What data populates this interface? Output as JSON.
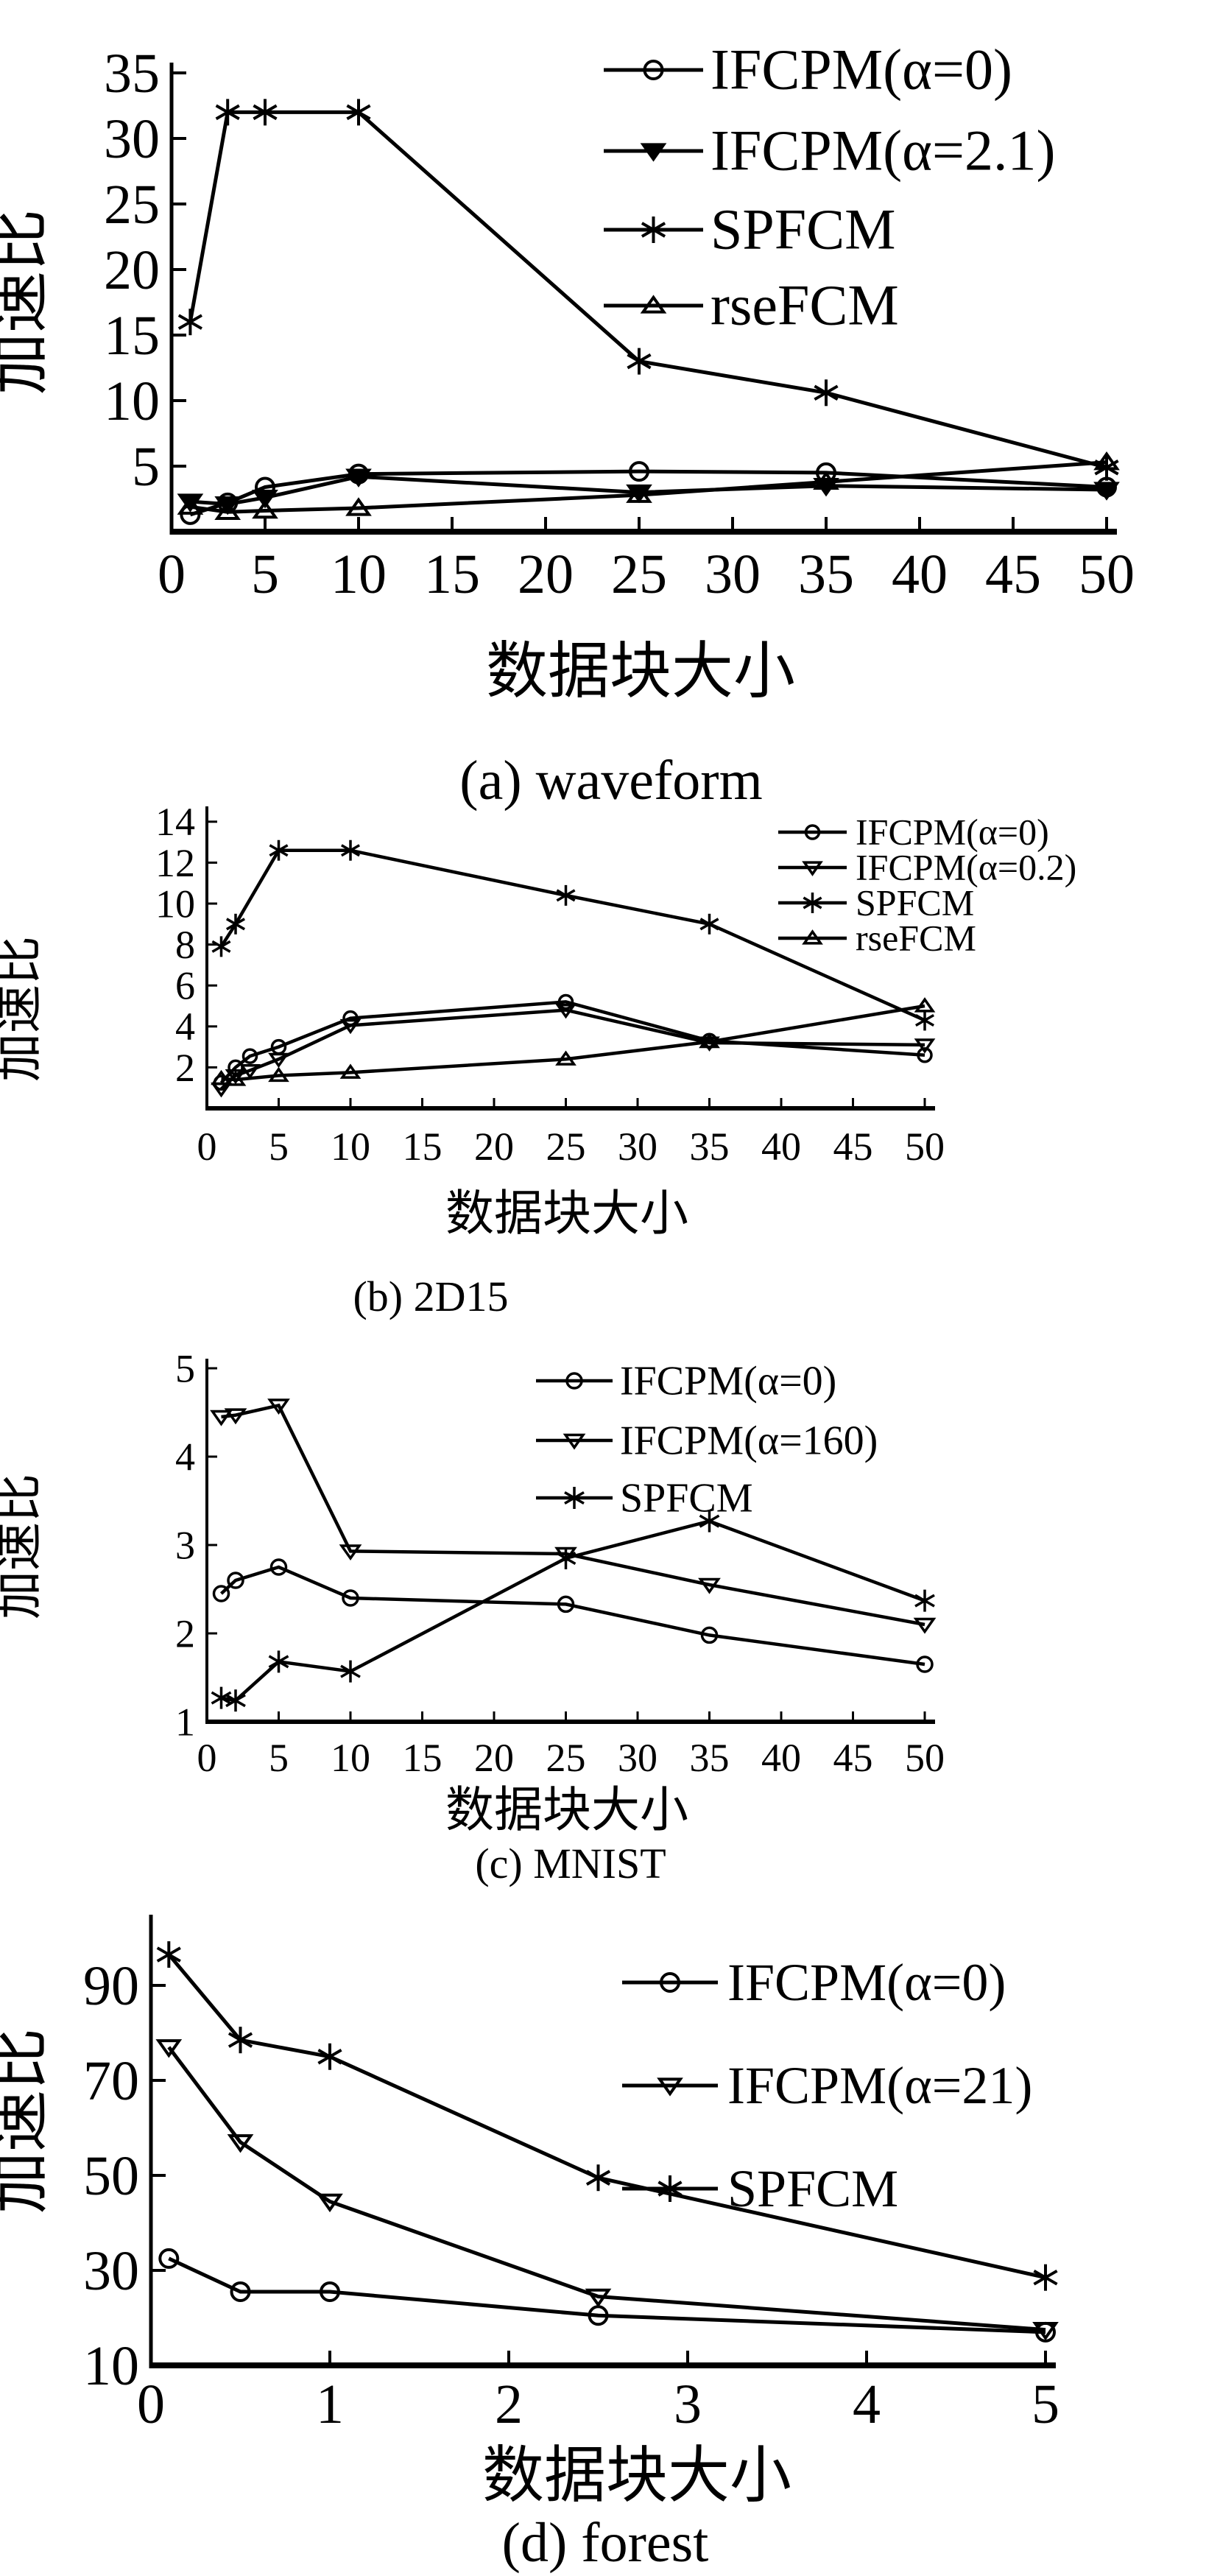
{
  "page": {
    "background": "#ffffff",
    "ink": "#000000",
    "figure_type": "four stacked line charts comparing clustering algorithm speedup"
  },
  "chart_data": [
    {
      "id": "a",
      "type": "line",
      "caption": "(a) waveform",
      "xlabel": "数据块大小",
      "ylabel": "加速比",
      "xlim": [
        0,
        50
      ],
      "ylim": [
        0,
        36
      ],
      "xticks": [
        0,
        5,
        10,
        15,
        20,
        25,
        30,
        35,
        40,
        45,
        50
      ],
      "yticks": [
        5,
        10,
        15,
        20,
        25,
        30,
        35
      ],
      "grid": false,
      "legend_position": "top-right",
      "series": [
        {
          "name": "IFCPM(α=0)",
          "marker": "circle",
          "x": [
            1,
            3,
            5,
            10,
            25,
            35,
            50
          ],
          "y": [
            1.3,
            2.2,
            3.4,
            4.4,
            4.6,
            4.5,
            3.4
          ]
        },
        {
          "name": "IFCPM(α=2.1)",
          "marker": "triangle-down-filled",
          "x": [
            1,
            3,
            5,
            10,
            25,
            35,
            50
          ],
          "y": [
            2.3,
            2.1,
            2.6,
            4.2,
            3.0,
            3.5,
            3.2
          ]
        },
        {
          "name": "SPFCM",
          "marker": "asterisk",
          "x": [
            1,
            3,
            5,
            10,
            25,
            35,
            50
          ],
          "y": [
            16,
            32,
            32,
            32,
            13,
            10.6,
            4.9
          ]
        },
        {
          "name": "rseFCM",
          "marker": "triangle-up",
          "x": [
            1,
            3,
            5,
            10,
            25,
            35,
            50
          ],
          "y": [
            1.9,
            1.5,
            1.6,
            1.8,
            2.8,
            3.8,
            5.3
          ]
        }
      ]
    },
    {
      "id": "b",
      "type": "line",
      "caption": "(b) 2D15",
      "xlabel": "数据块大小",
      "ylabel": "加速比",
      "xlim": [
        0,
        50
      ],
      "ylim": [
        0,
        14.8
      ],
      "xticks": [
        0,
        5,
        10,
        15,
        20,
        25,
        30,
        35,
        40,
        45,
        50
      ],
      "yticks": [
        2,
        4,
        6,
        8,
        10,
        12,
        14
      ],
      "grid": false,
      "legend_position": "top-right",
      "series": [
        {
          "name": "IFCPM(α=0)",
          "marker": "circle",
          "x": [
            1,
            2,
            3,
            5,
            10,
            25,
            35,
            50
          ],
          "y": [
            1.25,
            2.0,
            2.55,
            3.0,
            4.4,
            5.2,
            3.3,
            2.6
          ]
        },
        {
          "name": "IFCPM(α=0.2)",
          "marker": "triangle-down",
          "x": [
            1,
            2,
            3,
            5,
            10,
            25,
            35,
            50
          ],
          "y": [
            0.95,
            1.6,
            1.85,
            2.4,
            4.05,
            4.8,
            3.2,
            3.1
          ]
        },
        {
          "name": "SPFCM",
          "marker": "asterisk",
          "x": [
            1,
            2,
            5,
            10,
            25,
            35,
            50
          ],
          "y": [
            7.9,
            9.0,
            12.6,
            12.6,
            10.4,
            9.0,
            4.3
          ]
        },
        {
          "name": "rseFCM",
          "marker": "triangle-up",
          "x": [
            1,
            2,
            5,
            10,
            25,
            35,
            50
          ],
          "y": [
            1.45,
            1.4,
            1.6,
            1.75,
            2.4,
            3.25,
            5.0
          ]
        }
      ]
    },
    {
      "id": "c",
      "type": "line",
      "caption": "(c) MNIST",
      "xlabel": "数据块大小",
      "ylabel": "加速比",
      "xlim": [
        0,
        50
      ],
      "ylim": [
        1,
        5.15
      ],
      "xticks": [
        0,
        5,
        10,
        15,
        20,
        25,
        30,
        35,
        40,
        45,
        50
      ],
      "yticks": [
        1,
        2,
        3,
        4,
        5
      ],
      "grid": false,
      "legend_position": "top-right",
      "series": [
        {
          "name": "IFCPM(α=0)",
          "marker": "circle",
          "x": [
            1,
            2,
            5,
            10,
            25,
            35,
            50
          ],
          "y": [
            2.45,
            2.6,
            2.75,
            2.4,
            2.33,
            1.98,
            1.65
          ]
        },
        {
          "name": "IFCPM(α=160)",
          "marker": "triangle-down",
          "x": [
            1,
            2,
            5,
            10,
            25,
            35,
            50
          ],
          "y": [
            4.45,
            4.47,
            4.58,
            2.93,
            2.9,
            2.55,
            2.1
          ]
        },
        {
          "name": "SPFCM",
          "marker": "asterisk",
          "x": [
            1,
            2,
            5,
            10,
            25,
            35,
            50
          ],
          "y": [
            1.27,
            1.24,
            1.68,
            1.57,
            2.85,
            3.27,
            2.37
          ]
        }
      ]
    },
    {
      "id": "d",
      "type": "line",
      "caption": "(d) forest",
      "xlabel": "数据块大小",
      "ylabel": "加速比",
      "xlim": [
        0,
        5
      ],
      "ylim": [
        10,
        98
      ],
      "xticks": [
        0,
        1,
        2,
        3,
        4,
        5
      ],
      "yticks": [
        10,
        30,
        50,
        70,
        90
      ],
      "grid": false,
      "legend_position": "top-right",
      "series": [
        {
          "name": "IFCPM(α=0)",
          "marker": "circle",
          "x": [
            0.1,
            0.5,
            1,
            2.5,
            5
          ],
          "y": [
            32.5,
            25.5,
            25.5,
            20.5,
            17
          ]
        },
        {
          "name": "IFCPM(α=21)",
          "marker": "triangle-down",
          "x": [
            0.1,
            0.5,
            1,
            2.5,
            5
          ],
          "y": [
            77,
            57,
            44.5,
            24.5,
            17.5
          ]
        },
        {
          "name": "SPFCM",
          "marker": "asterisk",
          "x": [
            0.1,
            0.5,
            1,
            2.5,
            5
          ],
          "y": [
            96.5,
            78.5,
            75,
            49.5,
            28.5
          ]
        }
      ]
    }
  ]
}
